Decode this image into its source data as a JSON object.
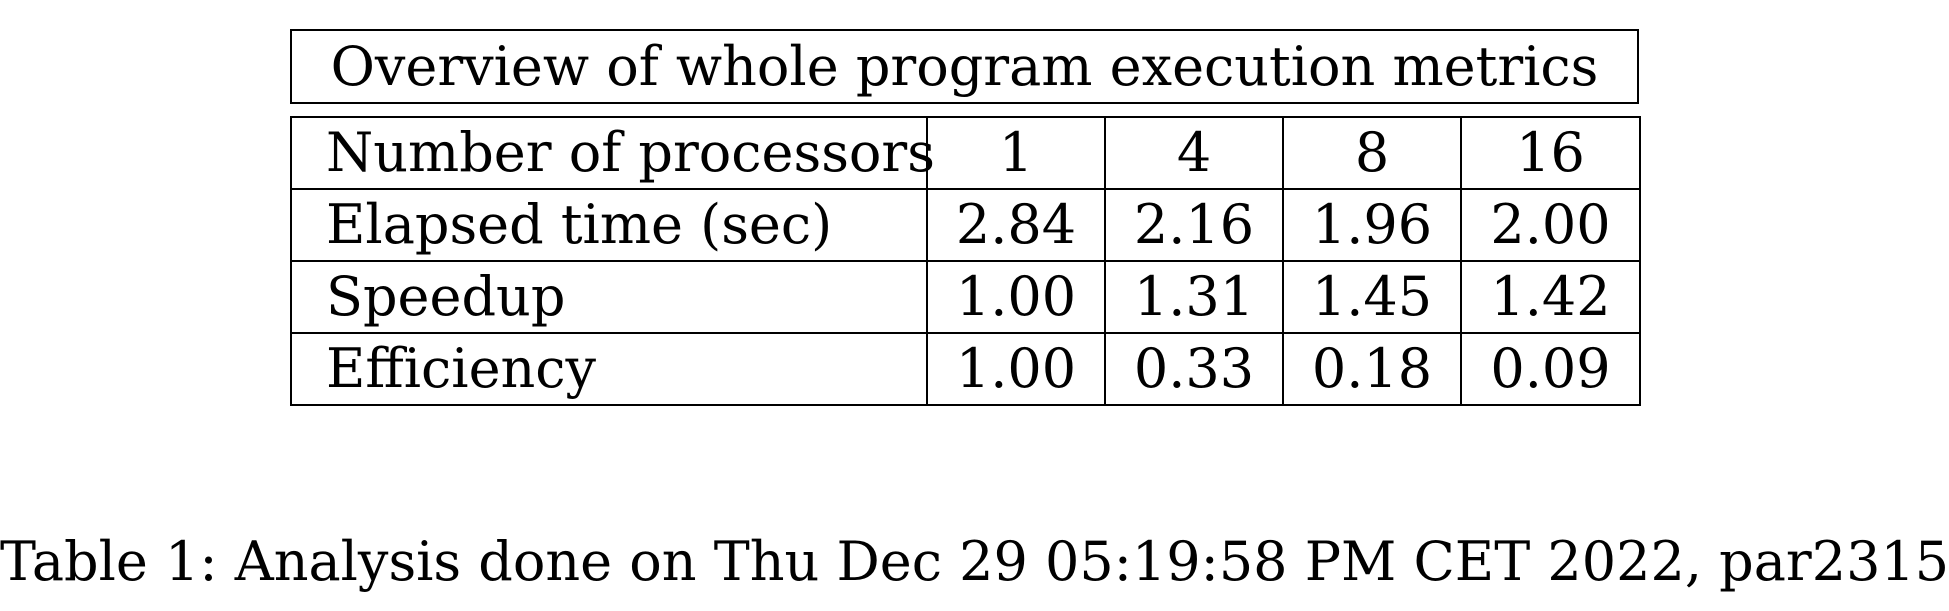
{
  "table": {
    "title": "Overview of whole program execution metrics",
    "header": {
      "label": "Number of processors",
      "values": [
        "1",
        "4",
        "8",
        "16"
      ]
    },
    "rows": [
      {
        "label": "Elapsed time (sec)",
        "values": [
          "2.84",
          "2.16",
          "1.96",
          "2.00"
        ]
      },
      {
        "label": "Speedup",
        "values": [
          "1.00",
          "1.31",
          "1.45",
          "1.42"
        ]
      },
      {
        "label": "Efficiency",
        "values": [
          "1.00",
          "0.33",
          "0.18",
          "0.09"
        ]
      }
    ]
  },
  "caption": "Table 1: Analysis done on Thu Dec 29 05:19:58 PM CET 2022, par2315"
}
